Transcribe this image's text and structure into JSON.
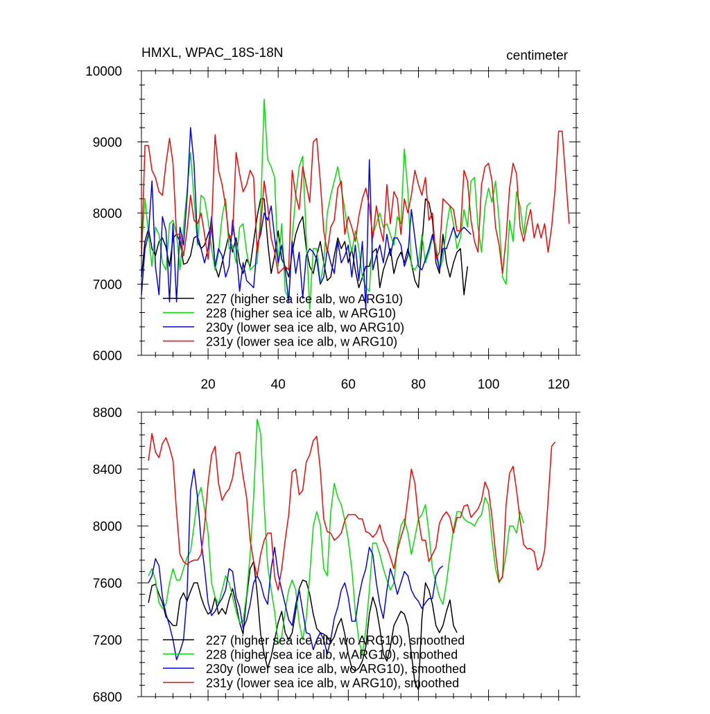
{
  "chart_data": [
    {
      "type": "line",
      "title_left": "HMXL, WPAC_18S-18N",
      "title_right": "centimeter",
      "xlabel": "",
      "ylabel": "",
      "xlim": [
        1,
        125
      ],
      "ylim": [
        6000,
        10000
      ],
      "xticks": [
        20,
        40,
        60,
        80,
        100,
        120
      ],
      "yticks": [
        6000,
        7000,
        8000,
        9000,
        10000
      ],
      "legend_placement": "bottom-left",
      "series": [
        {
          "name": "227 (higher sea ice alb, wo ARG10)",
          "color": "#000000",
          "x_start": 1,
          "values": [
            7100,
            7600,
            7780,
            7500,
            7400,
            7600,
            7650,
            7520,
            7250,
            7650,
            7700,
            7600,
            7280,
            7300,
            7400,
            7650,
            7680,
            7500,
            7550,
            7700,
            7850,
            7250,
            7100,
            7300,
            7500,
            7700,
            7450,
            7650,
            7300,
            7150,
            7350,
            7250,
            7600,
            7950,
            8200,
            8200,
            7600,
            7150,
            7400,
            7750,
            7350,
            7250,
            7100,
            7450,
            7700,
            7850,
            7950,
            7500,
            7250,
            7150,
            7400,
            7600,
            7300,
            7050,
            7100,
            7400,
            7650,
            7500,
            7600,
            7300,
            7500,
            7200,
            6950,
            7100,
            7250,
            7250,
            7450,
            7500,
            6950,
            7200,
            7350,
            7500,
            7150,
            7350,
            7450,
            7300,
            7500,
            7300,
            7050,
            6950,
            7550,
            8200,
            8150,
            7900,
            7300,
            7150,
            7700,
            7300,
            7100,
            7300,
            7450,
            7500,
            6850,
            7250
          ]
        },
        {
          "name": "228 (higher sea ice alb, w ARG10)",
          "color": "#00e000",
          "x_start": 1,
          "values": [
            7500,
            8200,
            7700,
            7250,
            7800,
            7700,
            7300,
            7200,
            7850,
            7900,
            7700,
            7200,
            7800,
            8300,
            8850,
            8200,
            7550,
            8250,
            8200,
            7900,
            7500,
            7200,
            7450,
            7950,
            8200,
            7500,
            7550,
            7300,
            7800,
            7850,
            7450,
            7200,
            7250,
            7300,
            8000,
            9600,
            8750,
            8650,
            8500,
            7250,
            7850,
            6900,
            6800,
            7650,
            8250,
            8650,
            8800,
            7650,
            6650,
            7500,
            7500,
            7000,
            7300,
            8000,
            8250,
            8450,
            8650,
            8350,
            8050,
            7700,
            7450,
            7750,
            7500,
            7100,
            6950,
            6900,
            7700,
            7850,
            8000,
            7800,
            7850,
            7700,
            7550,
            7950,
            7850,
            8900,
            8300,
            7250,
            7200,
            7300,
            7700,
            7300,
            7450,
            7650,
            7550,
            7200,
            7350,
            7800,
            8100,
            7850,
            7500,
            7650,
            8050,
            7800,
            8450,
            8500,
            7800,
            7450,
            8100,
            8350,
            8150,
            8450,
            7900,
            7100,
            7000,
            7900,
            7600,
            8300,
            8100,
            7700,
            8100,
            8150
          ]
        },
        {
          "name": "230y (lower sea ice alb, wo ARG10)",
          "color": "#0000ff",
          "x_start": 1,
          "values": [
            6850,
            7500,
            7700,
            8450,
            7250,
            6850,
            7950,
            7750,
            6750,
            7850,
            6750,
            7800,
            7550,
            8200,
            9200,
            8700,
            7600,
            7500,
            7300,
            7500,
            7950,
            7250,
            7500,
            7400,
            7100,
            7250,
            7900,
            7500,
            6900,
            7300,
            7050,
            7000,
            6950,
            7550,
            7700,
            8000,
            7900,
            8100,
            7650,
            7300,
            7550,
            7200,
            6750,
            7600,
            7150,
            7450,
            6800,
            7400,
            7500,
            7450,
            7350,
            7000,
            7100,
            7500,
            7300,
            7150,
            7600,
            7300,
            7400,
            7550,
            7100,
            7550,
            7050,
            7600,
            6650,
            8750,
            7200,
            7400,
            7550,
            7300,
            7700,
            7400,
            7650,
            7650,
            7550,
            7250,
            7400,
            8050,
            7650,
            7250,
            7200,
            7350,
            7500,
            7700,
            7450,
            7200,
            7500,
            7500,
            7650,
            7800,
            7650,
            7750,
            7800,
            7750,
            7700
          ]
        },
        {
          "name": "231y (lower sea ice alb, w ARG10)",
          "color": "#ff0000",
          "x_start": 1,
          "values": [
            7400,
            8950,
            8950,
            8600,
            8500,
            8300,
            8250,
            8700,
            9050,
            8700,
            7700,
            7700,
            7400,
            7750,
            8250,
            7900,
            7850,
            8000,
            7700,
            7350,
            7800,
            9100,
            8600,
            8400,
            8100,
            7650,
            7700,
            8850,
            8550,
            8300,
            8400,
            8600,
            8500,
            7450,
            7800,
            8450,
            8100,
            7650,
            7450,
            7150,
            7200,
            7250,
            7200,
            8600,
            8250,
            8050,
            8650,
            8400,
            8150,
            9000,
            9050,
            8450,
            7750,
            7450,
            7800,
            7900,
            8350,
            8450,
            7700,
            7950,
            7800,
            7600,
            7950,
            8200,
            8350,
            8100,
            7650,
            8100,
            7800,
            7600,
            8400,
            7850,
            8300,
            8200,
            7700,
            8200,
            8000,
            8250,
            8600,
            8400,
            8250,
            8500,
            7900,
            8000,
            7350,
            7450,
            8200,
            8150,
            8100,
            8050,
            7750,
            7750,
            8600,
            8450,
            7900,
            7600,
            7450,
            8400,
            8650,
            8700,
            8450,
            7800,
            7550,
            7150,
            7650,
            8350,
            8700,
            8550,
            7800,
            7600,
            7850,
            8050,
            7650,
            7850,
            7650,
            7850,
            7450,
            7800,
            8350,
            9150,
            9150,
            8500,
            7850
          ]
        }
      ]
    },
    {
      "type": "line",
      "title_left": "",
      "title_right": "",
      "xlabel": "",
      "ylabel": "",
      "xlim": [
        1,
        125
      ],
      "ylim": [
        6800,
        8800
      ],
      "xticks": [
        20,
        40,
        60,
        80,
        100,
        120
      ],
      "yticks": [
        6800,
        7200,
        7600,
        8000,
        8400,
        8800
      ],
      "legend_placement": "bottom-left",
      "series": [
        {
          "name": "227 (higher sea ice alb, wo ARG10), smoothed",
          "color": "#000000",
          "x_start": 3,
          "values": [
            7460,
            7580,
            7590,
            7520,
            7460,
            7360,
            7330,
            7300,
            7300,
            7480,
            7530,
            7470,
            7540,
            7600,
            7600,
            7500,
            7430,
            7380,
            7400,
            7500,
            7380,
            7420,
            7380,
            7480,
            7560,
            7450,
            7320,
            7240,
            7500,
            7700,
            7750,
            7530,
            7240,
            7100,
            7000,
            7080,
            7200,
            7320,
            7400,
            7250,
            7200,
            7250,
            7400,
            7560,
            7620,
            7610,
            7520,
            7380,
            7280,
            7250,
            7240,
            7220,
            7180,
            7220,
            7300,
            7350,
            7240,
            7100,
            7000,
            6980,
            7000,
            7050,
            7150,
            7380,
            7500,
            7420,
            7280,
            7100,
            7050,
            7150,
            7300,
            7350,
            7400,
            7380,
            7300,
            7100,
            6900,
            6850,
            7350,
            7600,
            7550,
            7450,
            7300,
            7250,
            7300,
            7400,
            7480,
            7300,
            7250
          ]
        },
        {
          "name": "228 (higher sea ice alb, w ARG10), smoothed",
          "color": "#00e000",
          "x_start": 3,
          "values": [
            7650,
            7700,
            7620,
            7460,
            7420,
            7450,
            7600,
            7700,
            7620,
            7620,
            7700,
            7780,
            7820,
            8000,
            8200,
            8270,
            8120,
            7950,
            7600,
            7500,
            7450,
            7550,
            7650,
            7600,
            7500,
            7400,
            7320,
            7330,
            7520,
            7800,
            8200,
            8750,
            8650,
            8150,
            7720,
            7550,
            7400,
            7170,
            7220,
            7400,
            7550,
            7620,
            7550,
            7320,
            7200,
            7350,
            7650,
            8000,
            8100,
            8010,
            7700,
            7650,
            8100,
            8300,
            8200,
            8150,
            8040,
            7900,
            7700,
            7400,
            7200,
            7100,
            7270,
            7550,
            7880,
            7880,
            7800,
            7700,
            7620,
            7550,
            7600,
            7850,
            8000,
            8050,
            7950,
            7800,
            7920,
            8050,
            8080,
            8150,
            7950,
            7700,
            7600,
            7500,
            7450,
            7600,
            7800,
            7980,
            8100,
            8100,
            8050,
            8030,
            8020,
            8000,
            8050,
            8080,
            8200,
            8150,
            7900,
            7700,
            7600,
            7650,
            7800,
            8000,
            8000,
            7950,
            8100,
            8020
          ]
        },
        {
          "name": "230y (lower sea ice alb, wo ARG10), smoothed",
          "color": "#0000ff",
          "x_start": 3,
          "values": [
            7600,
            7650,
            7770,
            7720,
            7500,
            7380,
            7300,
            7200,
            7060,
            7120,
            7200,
            7500,
            8250,
            8400,
            8200,
            7900,
            7700,
            7460,
            7370,
            7400,
            7450,
            7490,
            7550,
            7700,
            7680,
            7500,
            7430,
            7280,
            7340,
            7450,
            7600,
            7650,
            7600,
            7500,
            7450,
            7700,
            7850,
            7660,
            7550,
            7450,
            7340,
            7300,
            7450,
            7550,
            7400,
            7250,
            7240,
            7130,
            7200,
            7250,
            7200,
            7100,
            7200,
            7350,
            7430,
            7550,
            7600,
            7500,
            7330,
            7330,
            7500,
            7620,
            7700,
            7850,
            7800,
            7600,
            7450,
            7350,
            7550,
            7700,
            7620,
            7520,
            7600,
            7680,
            7650,
            7550,
            7500,
            7470,
            7420,
            7460,
            7490,
            7490,
            7650,
            7700,
            7720
          ]
        },
        {
          "name": "231y (lower sea ice alb, w ARG10), smoothed",
          "color": "#ff0000",
          "x_start": 3,
          "values": [
            8460,
            8650,
            8520,
            8480,
            8580,
            8620,
            8550,
            8460,
            8100,
            7800,
            7750,
            7730,
            7750,
            7760,
            7760,
            7800,
            8000,
            8300,
            8500,
            8560,
            8300,
            8180,
            8230,
            8260,
            8340,
            8510,
            8520,
            8350,
            8200,
            7900,
            7750,
            7650,
            7800,
            7900,
            7950,
            7950,
            7640,
            7550,
            7700,
            7900,
            8080,
            8380,
            8400,
            8220,
            8250,
            8450,
            8500,
            8600,
            8630,
            8400,
            8050,
            7960,
            7950,
            7900,
            7920,
            7950,
            8040,
            8080,
            8080,
            8080,
            8050,
            8050,
            7960,
            7950,
            7920,
            7950,
            8010,
            7900,
            7850,
            7780,
            7700,
            7830,
            7920,
            8000,
            8200,
            8400,
            8300,
            8050,
            7900,
            7900,
            7750,
            7800,
            7850,
            8020,
            8070,
            8100,
            8060,
            7950,
            8060,
            8060,
            8140,
            8150,
            8060,
            8090,
            8120,
            8180,
            8310,
            8250,
            8060,
            7810,
            7610,
            7640,
            8150,
            8370,
            8420,
            8250,
            8040,
            7870,
            7840,
            7840,
            7820,
            7690,
            7720,
            7830,
            8180,
            8560,
            8590
          ]
        }
      ]
    }
  ]
}
